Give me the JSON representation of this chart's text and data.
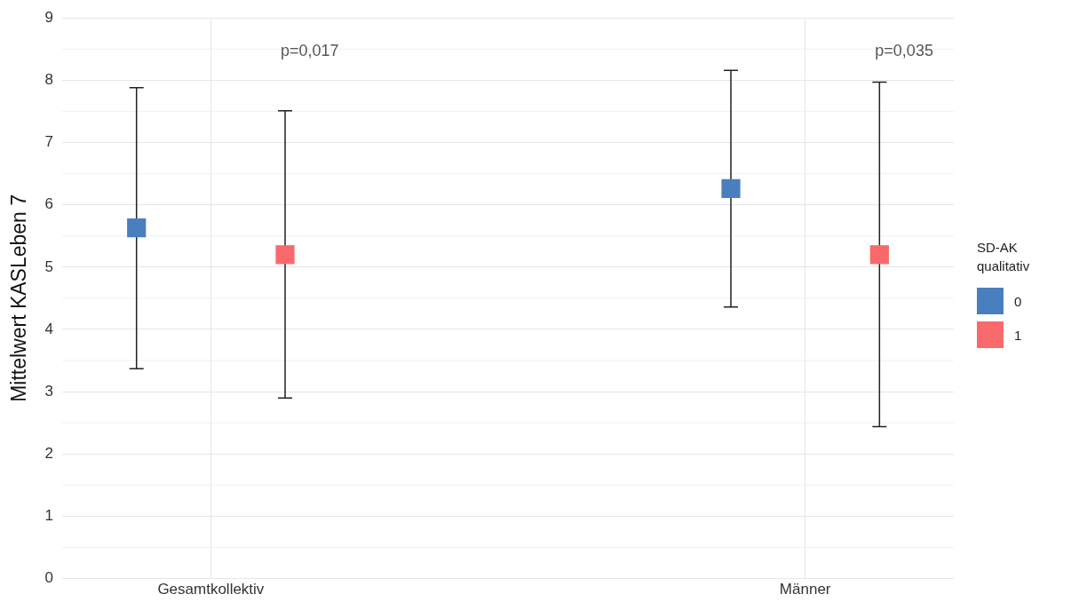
{
  "chart_data": {
    "type": "scatter",
    "ylabel": "Mittelwert KASLeben 7",
    "legend_title": "SD-AK qualitativ",
    "categories": [
      "Gesamtkollektiv",
      "Männer"
    ],
    "series": [
      {
        "name": "0",
        "color": "#4a7fbf",
        "values": [
          5.63,
          6.26
        ],
        "errors": [
          [
            3.37,
            7.88
          ],
          [
            4.36,
            8.16
          ]
        ]
      },
      {
        "name": "1",
        "color": "#f8696b",
        "values": [
          5.2,
          5.2
        ],
        "errors": [
          [
            2.9,
            7.51
          ],
          [
            2.44,
            7.97
          ]
        ]
      }
    ],
    "ylim": [
      0,
      9
    ],
    "yticks": [
      0,
      1,
      2,
      3,
      4,
      5,
      6,
      7,
      8,
      9
    ],
    "grid": true,
    "legend": "right",
    "marker": "square",
    "annotations": [
      "p=0,017",
      "p=0,035"
    ]
  }
}
